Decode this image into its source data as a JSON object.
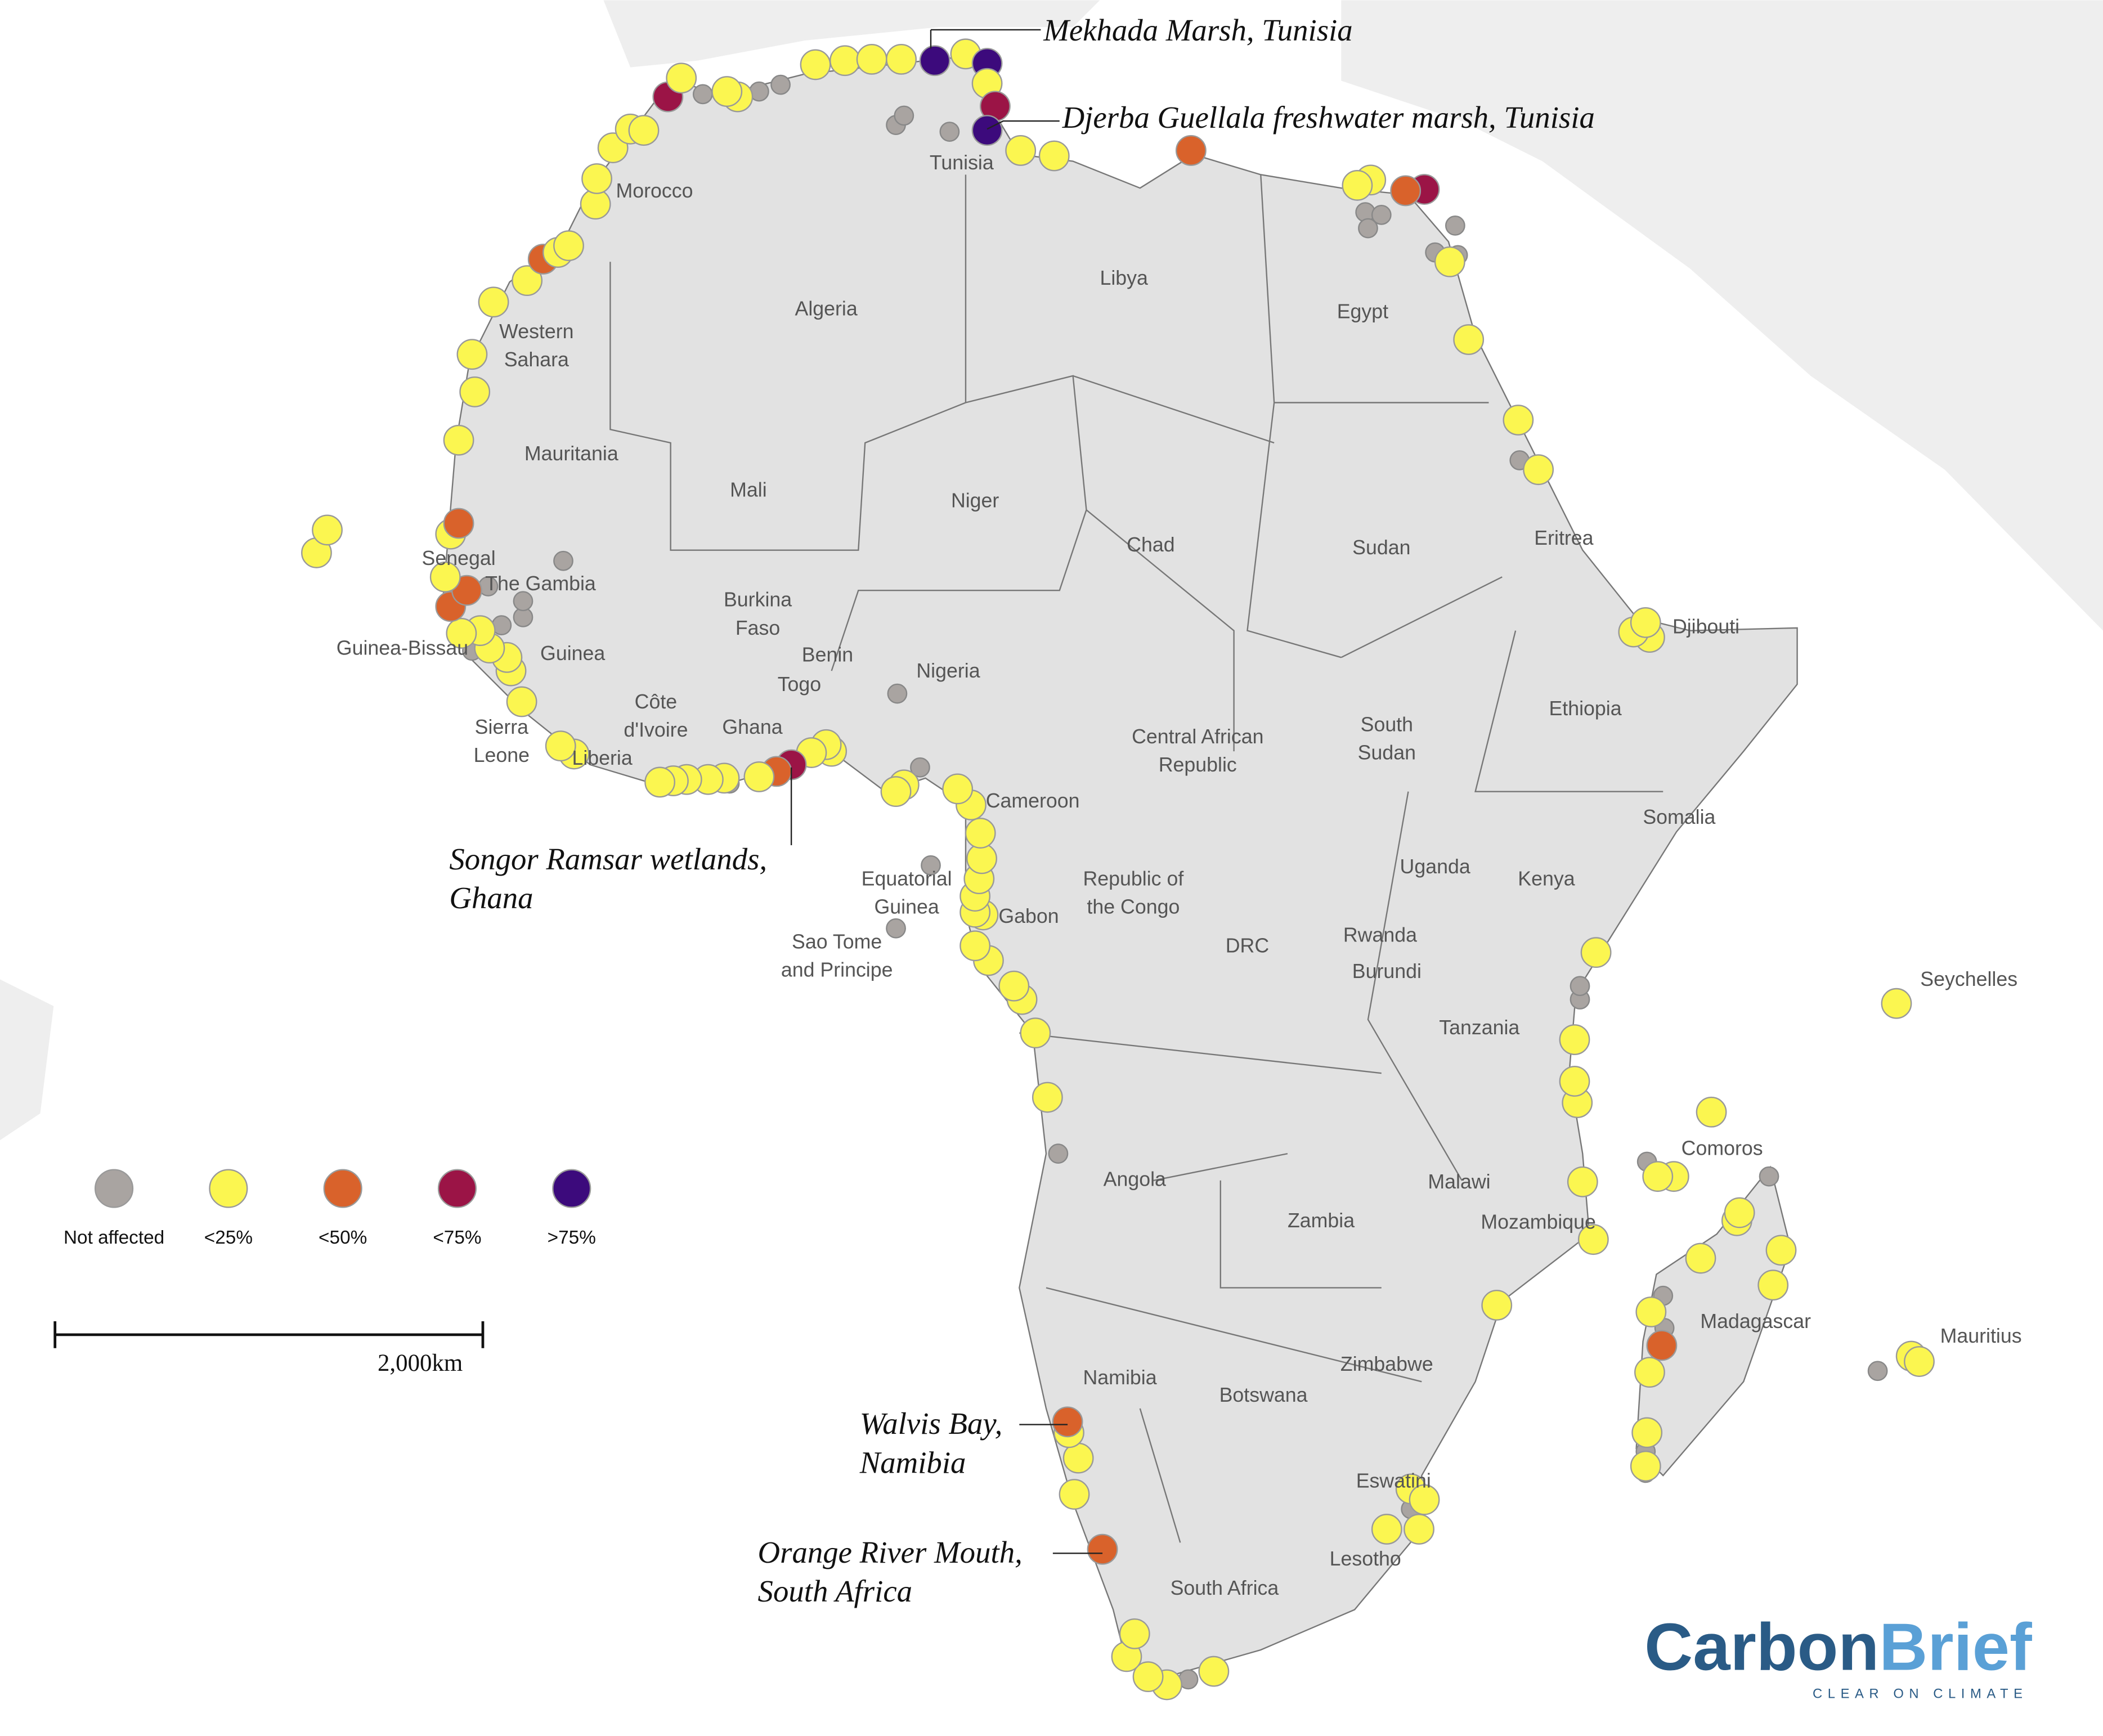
{
  "map": {
    "country_labels": [
      [
        "Morocco"
      ],
      [
        "Algeria"
      ],
      [
        "Tunisia"
      ],
      [
        "Libya"
      ],
      [
        "Egypt"
      ],
      [
        "Western",
        "Sahara"
      ],
      [
        "Mauritania"
      ],
      [
        "Mali"
      ],
      [
        "Niger"
      ],
      [
        "Chad"
      ],
      [
        "Sudan"
      ],
      [
        "Eritrea"
      ],
      [
        "Senegal"
      ],
      [
        "The Gambia"
      ],
      [
        "Guinea-Bissau"
      ],
      [
        "Guinea"
      ],
      [
        "Burkina",
        "Faso"
      ],
      [
        "Benin"
      ],
      [
        "Togo"
      ],
      [
        "Nigeria"
      ],
      [
        "Djibouti"
      ],
      [
        "Ethiopia"
      ],
      [
        "Côte",
        "d'Ivoire"
      ],
      [
        "Ghana"
      ],
      [
        "Sierra",
        "Leone"
      ],
      [
        "Liberia"
      ],
      [
        "Central African",
        "Republic"
      ],
      [
        "South",
        "Sudan"
      ],
      [
        "Cameroon"
      ],
      [
        "Somalia"
      ],
      [
        "Equatorial",
        "Guinea"
      ],
      [
        "Republic of",
        "the Congo"
      ],
      [
        "Uganda"
      ],
      [
        "Kenya"
      ],
      [
        "Gabon"
      ],
      [
        "Sao Tome",
        "and Principe"
      ],
      [
        "DRC"
      ],
      [
        "Rwanda"
      ],
      [
        "Burundi"
      ],
      [
        "Tanzania"
      ],
      [
        "Seychelles"
      ],
      [
        "Comoros"
      ],
      [
        "Angola"
      ],
      [
        "Malawi"
      ],
      [
        "Zambia"
      ],
      [
        "Mozambique"
      ],
      [
        "Madagascar"
      ],
      [
        "Mauritius"
      ],
      [
        "Namibia"
      ],
      [
        "Zimbabwe"
      ],
      [
        "Botswana"
      ],
      [
        "Eswatini"
      ],
      [
        "Lesotho"
      ],
      [
        "South Africa"
      ]
    ],
    "annotations": [
      [
        "Mekhada Marsh, Tunisia"
      ],
      [
        "Djerba Guellala freshwater marsh, Tunisia"
      ],
      [
        "Songor Ramsar wetlands,",
        "Ghana"
      ],
      [
        "Walvis Bay,",
        "Namibia"
      ],
      [
        "Orange River Mouth,",
        "South Africa"
      ]
    ],
    "legend": [
      {
        "label": "Not affected",
        "color": "#a9a4a1"
      },
      {
        "label": "<25%",
        "color": "#fbf650"
      },
      {
        "label": "<50%",
        "color": "#d9622b"
      },
      {
        "label": "<75%",
        "color": "#9b1446"
      },
      {
        "label": ">75%",
        "color": "#3c0a7c"
      }
    ],
    "scale_label": "2,000km",
    "logo": {
      "carbon": "Carbon",
      "brief": "Brief",
      "tagline": "CLEAR ON CLIMATE"
    }
  }
}
